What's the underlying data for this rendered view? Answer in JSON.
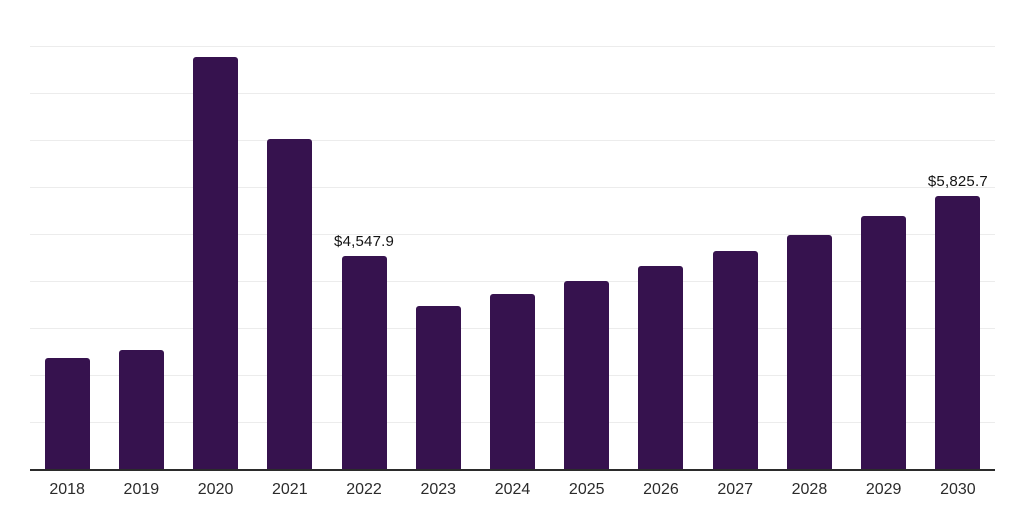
{
  "chart_data": {
    "type": "bar",
    "title": "",
    "xlabel": "",
    "ylabel": "",
    "categories": [
      "2018",
      "2019",
      "2020",
      "2021",
      "2022",
      "2023",
      "2024",
      "2025",
      "2026",
      "2027",
      "2028",
      "2029",
      "2030"
    ],
    "values": [
      2384,
      2561,
      8800,
      7040,
      4547.9,
      3483,
      3754,
      4030,
      4350,
      4669,
      5010,
      5415,
      5825.7
    ],
    "data_labels": {
      "2022": "$4,547.9",
      "2030": "$5,825.7"
    },
    "ylim": [
      0,
      10010
    ],
    "gridline_step": 1000,
    "grid": "horizontal",
    "legend_position": "none",
    "bar_color": "#36124e",
    "gridline_color": "#ececec",
    "axis_line_color": "#2b2b2b",
    "label_color": "#141414",
    "tick_label_color": "#2b2b2b"
  }
}
